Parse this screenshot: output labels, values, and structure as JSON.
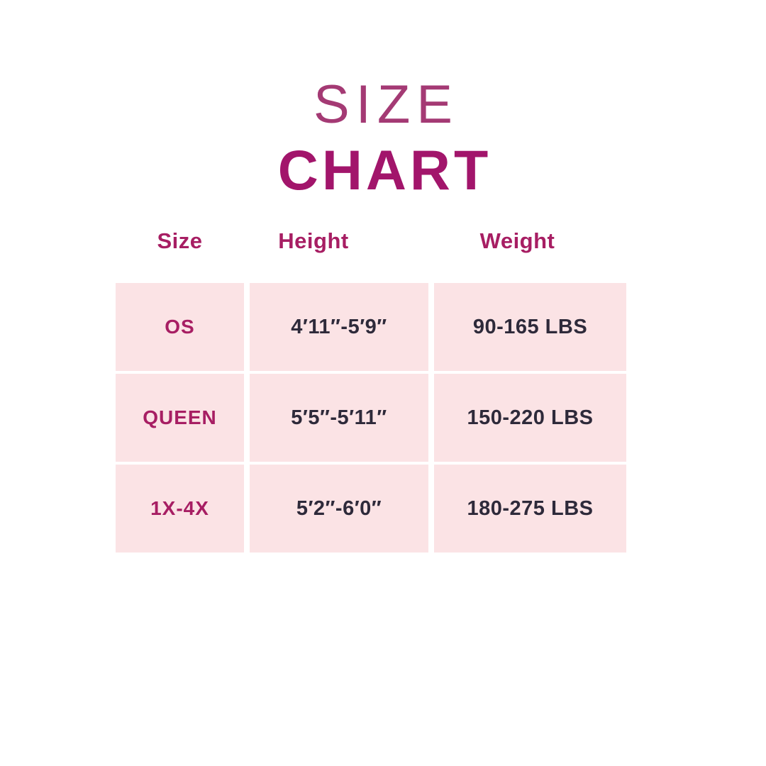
{
  "title": {
    "line1": "SIZE",
    "line2": "CHART"
  },
  "colors": {
    "page_bg": "#FFFFFF",
    "cell_bg": "#FBE3E5",
    "accent_magenta": "#A71E63",
    "title_light": "#A43A74",
    "title_bold": "#A2156B",
    "dark_text": "#2E2A3A"
  },
  "chart_data": {
    "type": "table",
    "title": "SIZE CHART",
    "columns": [
      "Size",
      "Height",
      "Weight"
    ],
    "rows": [
      {
        "size": "OS",
        "height": "4′11″-5′9″",
        "weight": "90-165 LBS"
      },
      {
        "size": "QUEEN",
        "height": "5′5″-5′11″",
        "weight": "150-220 LBS"
      },
      {
        "size": "1X-4X",
        "height": "5′2″-6′0″",
        "weight": "180-275 LBS"
      }
    ]
  }
}
